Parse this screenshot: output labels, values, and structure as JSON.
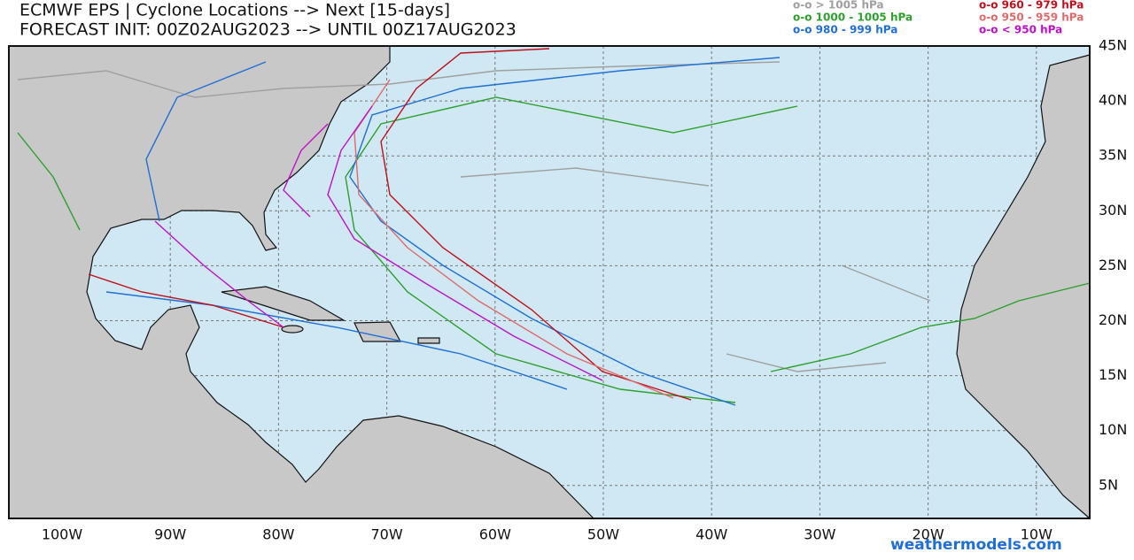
{
  "header": {
    "title": "ECMWF EPS | Cyclone Locations --> Next [15-days]",
    "subtitle": "FORECAST INIT: 00Z02AUG2023 --> UNTIL 00Z17AUG2023"
  },
  "legend": {
    "items": [
      {
        "label": "o-o > 1005 hPa",
        "color": "#a0a0a0"
      },
      {
        "label": "o-o 1000 - 1005 hPa",
        "color": "#2ca02c"
      },
      {
        "label": "o-o 980 - 999 hPa",
        "color": "#1f6fd6"
      },
      {
        "label": "o-o 960 - 979 hPa",
        "color": "#c0101a"
      },
      {
        "label": "o-o 950 - 959 hPa",
        "color": "#e06a6a"
      },
      {
        "label": "o-o < 950 hPa",
        "color": "#c010c8"
      }
    ]
  },
  "axes": {
    "latitude_labels": [
      "45N",
      "40N",
      "35N",
      "30N",
      "25N",
      "20N",
      "15N",
      "10N",
      "5N"
    ],
    "longitude_labels": [
      "100W",
      "90W",
      "80W",
      "70W",
      "60W",
      "50W",
      "40W",
      "30W",
      "20W",
      "10W"
    ]
  },
  "watermark": "weathermodels.com"
}
